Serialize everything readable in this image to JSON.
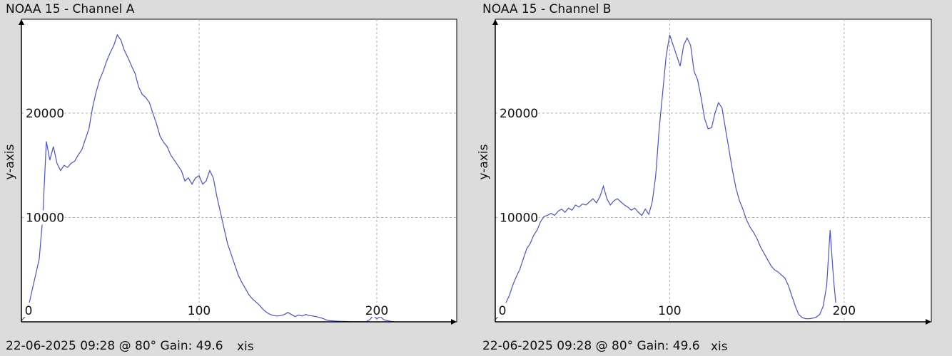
{
  "charts": [
    {
      "title": "NOAA 15 - Channel A",
      "footer": "22-06-2025 09:28 @ 80° Gain: 49.6",
      "xlabel": "xis",
      "ylabel": "y-axis",
      "series_color": "#4b52c8"
    },
    {
      "title": "NOAA 15 - Channel B",
      "footer": "22-06-2025 09:28 @ 80° Gain: 49.6",
      "xlabel": "xis",
      "ylabel": "y-axis",
      "series_color": "#4b52c8"
    }
  ],
  "chart_data": [
    {
      "type": "line",
      "title": "NOAA 15 - Channel A",
      "xlabel": "xis",
      "ylabel": "y-axis",
      "xlim": [
        0,
        245
      ],
      "ylim": [
        0,
        29000
      ],
      "xticks": [
        0,
        100,
        200
      ],
      "yticks": [
        10000,
        20000
      ],
      "grid": true,
      "x": [
        0,
        2,
        4,
        6,
        8,
        10,
        12,
        14,
        16,
        18,
        20,
        22,
        24,
        26,
        28,
        30,
        32,
        34,
        36,
        38,
        40,
        42,
        44,
        46,
        48,
        50,
        52,
        54,
        56,
        58,
        60,
        62,
        64,
        66,
        68,
        70,
        72,
        74,
        76,
        78,
        80,
        82,
        84,
        86,
        88,
        90,
        92,
        94,
        96,
        98,
        100,
        102,
        104,
        106,
        108,
        110,
        112,
        114,
        116,
        118,
        120,
        122,
        124,
        126,
        128,
        130,
        132,
        134,
        136,
        138,
        140,
        142,
        144,
        146,
        148,
        150,
        152,
        154,
        156,
        158,
        160,
        162,
        164,
        166,
        168,
        170,
        172,
        174,
        176,
        178,
        180,
        182,
        184,
        186,
        188,
        190,
        192,
        194,
        196,
        198,
        200,
        202,
        204,
        206,
        208,
        210
      ],
      "series": [
        {
          "values": [
            100,
            500,
            1500,
            3000,
            4500,
            6000,
            10000,
            17300,
            15500,
            16800,
            15200,
            14500,
            15000,
            14800,
            15200,
            15400,
            16000,
            16500,
            17500,
            18500,
            20500,
            22000,
            23200,
            24000,
            25000,
            25800,
            26500,
            27500,
            27000,
            26000,
            25300,
            24500,
            23800,
            22500,
            21800,
            21500,
            21000,
            20000,
            19000,
            17800,
            17200,
            16800,
            16000,
            15500,
            15000,
            14500,
            13500,
            13800,
            13200,
            13800,
            14000,
            13200,
            13500,
            14500,
            13800,
            12000,
            10500,
            9000,
            7500,
            6500,
            5500,
            4500,
            3800,
            3200,
            2600,
            2200,
            1900,
            1600,
            1200,
            900,
            700,
            600,
            550,
            600,
            700,
            900,
            700,
            500,
            650,
            550,
            700,
            600,
            550,
            500,
            400,
            300,
            150,
            100,
            80,
            60,
            50,
            40,
            30,
            20,
            15,
            10,
            10,
            5,
            200,
            600,
            300,
            500,
            200,
            100,
            50,
            0
          ]
        }
      ]
    },
    {
      "type": "line",
      "title": "NOAA 15 - Channel B",
      "xlabel": "xis",
      "ylabel": "y-axis",
      "xlim": [
        0,
        250
      ],
      "ylim": [
        0,
        29000
      ],
      "xticks": [
        0,
        100,
        200
      ],
      "yticks": [
        10000,
        20000
      ],
      "grid": true,
      "x": [
        0,
        2,
        4,
        6,
        8,
        10,
        12,
        14,
        16,
        18,
        20,
        22,
        24,
        26,
        28,
        30,
        32,
        34,
        36,
        38,
        40,
        42,
        44,
        46,
        48,
        50,
        52,
        54,
        56,
        58,
        60,
        62,
        64,
        66,
        68,
        70,
        72,
        74,
        76,
        78,
        80,
        82,
        84,
        86,
        88,
        90,
        92,
        94,
        96,
        98,
        100,
        102,
        104,
        106,
        108,
        110,
        112,
        114,
        116,
        118,
        120,
        122,
        124,
        126,
        128,
        130,
        132,
        134,
        136,
        138,
        140,
        142,
        144,
        146,
        148,
        150,
        152,
        154,
        156,
        158,
        160,
        162,
        164,
        166,
        168,
        170,
        172,
        174,
        176,
        178,
        180,
        182,
        184,
        186,
        188,
        190,
        192,
        194,
        196
      ],
      "series": [
        {
          "values": [
            200,
            600,
            1200,
            1800,
            2500,
            3500,
            4300,
            5000,
            6000,
            7000,
            7500,
            8300,
            8800,
            9600,
            10100,
            10200,
            10400,
            10200,
            10600,
            10800,
            10500,
            10900,
            10700,
            11200,
            11000,
            11300,
            11200,
            11500,
            11800,
            11400,
            12000,
            13000,
            11800,
            11200,
            11600,
            11800,
            11500,
            11200,
            11000,
            10700,
            10900,
            10500,
            10200,
            10800,
            10300,
            11500,
            14000,
            18500,
            22000,
            25500,
            27500,
            26500,
            25500,
            24500,
            26500,
            27200,
            26500,
            24000,
            23200,
            21500,
            19500,
            18500,
            18600,
            20000,
            21000,
            20500,
            18500,
            16500,
            14500,
            12800,
            11600,
            10800,
            9800,
            9100,
            8600,
            8000,
            7200,
            6600,
            6000,
            5400,
            5000,
            4800,
            4500,
            4200,
            3500,
            2500,
            1500,
            700,
            400,
            300,
            300,
            350,
            450,
            700,
            1500,
            3500,
            8800,
            4000,
            500
          ]
        }
      ]
    }
  ]
}
